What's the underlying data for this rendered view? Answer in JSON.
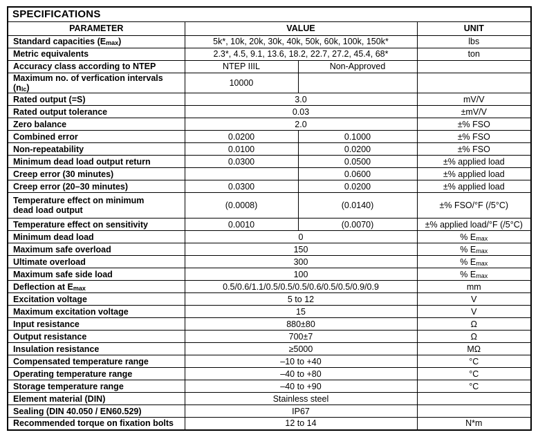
{
  "table": {
    "title": "SPECIFICATIONS",
    "headers": {
      "param": "PARAMETER",
      "value": "VALUE",
      "unit": "UNIT"
    },
    "rows": [
      {
        "param": "Standard capacities (E",
        "param_sub": "max",
        "param_end": ")",
        "value": "5k*, 10k, 20k, 30k, 40k, 50k, 60k, 100k, 150k*",
        "unit": "lbs"
      },
      {
        "param": "Metric equivalents",
        "value": "2.3*, 4.5, 9.1, 13.6, 18.2, 22.7, 27.2, 45.4, 68*",
        "unit": "ton"
      },
      {
        "param": "Accuracy class according to NTEP",
        "value_left": "NTEP IIIL",
        "value_right": "Non-Approved",
        "unit": ""
      },
      {
        "param": "Maximum no. of verfication intervals (n",
        "param_sub": "lc",
        "param_end": ")",
        "value_left": "10000",
        "value_right": "",
        "unit": ""
      },
      {
        "param": "Rated output (=S)",
        "value": "3.0",
        "unit": "mV/V"
      },
      {
        "param": "Rated output tolerance",
        "value": "0.03",
        "unit": "±mV/V"
      },
      {
        "param": "Zero balance",
        "value": "2.0",
        "unit": "±% FSO"
      },
      {
        "param": "Combined error",
        "value_left": "0.0200",
        "value_right": "0.1000",
        "unit": "±% FSO"
      },
      {
        "param": "Non-repeatability",
        "value_left": "0.0100",
        "value_right": "0.0200",
        "unit": "±% FSO"
      },
      {
        "param": "Minimum dead load output return",
        "value_left": "0.0300",
        "value_right": "0.0500",
        "unit": "±% applied load"
      },
      {
        "param": "Creep error (30 minutes)",
        "value_left": "",
        "value_right": "0.0600",
        "unit": "±% applied load"
      },
      {
        "param": "Creep error (20–30 minutes)",
        "value_left": "0.0300",
        "value_right": "0.0200",
        "unit": "±% applied load"
      },
      {
        "param": "Temperature effect on minimum",
        "param2": "dead load output",
        "value_left": "(0.0008)",
        "value_right": "(0.0140)",
        "unit": "±% FSO/°F (/5°C)"
      },
      {
        "param": "Temperature effect on sensitivity",
        "value_left": "0.0010",
        "value_right": "(0.0070)",
        "unit": "±% applied load/°F (/5°C)"
      },
      {
        "param": "Minimum dead load",
        "value": "0",
        "unit": "% E",
        "unit_sub": "max"
      },
      {
        "param": "Maximum safe overload",
        "value": "150",
        "unit": "% E",
        "unit_sub": "max"
      },
      {
        "param": "Ultimate overload",
        "value": "300",
        "unit": "% E",
        "unit_sub": "max"
      },
      {
        "param": "Maximum safe side load",
        "value": "100",
        "unit": "% E",
        "unit_sub": "max"
      },
      {
        "param": "Deflection at E",
        "param_sub": "max",
        "value": "0.5/0.6/1.1/0.5/0.5/0.5/0.6/0.5/0.5/0.9/0.9",
        "unit": "mm"
      },
      {
        "param": "Excitation voltage",
        "value": "5 to 12",
        "unit": "V"
      },
      {
        "param": "Maximum excitation voltage",
        "value": "15",
        "unit": "V"
      },
      {
        "param": "Input resistance",
        "value": "880±80",
        "unit": "Ω"
      },
      {
        "param": "Output resistance",
        "value": "700±7",
        "unit": "Ω"
      },
      {
        "param": "Insulation resistance",
        "value": "≥5000",
        "unit": "MΩ"
      },
      {
        "param": "Compensated temperature range",
        "value": "–10 to +40",
        "unit": "°C"
      },
      {
        "param": "Operating temperature range",
        "value": "–40 to +80",
        "unit": "°C"
      },
      {
        "param": "Storage temperature range",
        "value": "–40 to +90",
        "unit": "°C"
      },
      {
        "param": "Element material (DIN)",
        "value": "Stainless steel",
        "unit": ""
      },
      {
        "param": "Sealing (DIN 40.050 / EN60.529)",
        "value": "IP67",
        "unit": ""
      },
      {
        "param": "Recommended torque on fixation bolts",
        "value": "12 to 14",
        "unit": "N*m"
      }
    ]
  }
}
